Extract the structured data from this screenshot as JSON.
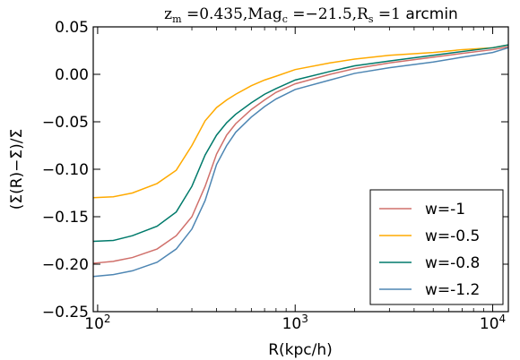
{
  "chart_data": {
    "type": "line",
    "title": "z_m =0.435,Mag_c =−21.5,R_s =1 arcmin",
    "title_parts": {
      "zm": "z",
      "zm_sub": "m",
      "zm_val": " =0.435,Mag",
      "magc_sub": "c",
      "magc_val": " =−21.5,R",
      "rs_sub": "s",
      "rs_val": " =1 ",
      "unit": "arcmin"
    },
    "xlabel": "R(kpc/h)",
    "ylabel": "(Σ(R)−Σ̄)/Σ̄",
    "x_scale": "log",
    "xlim": [
      95,
      12000
    ],
    "ylim": [
      -0.25,
      0.05
    ],
    "x_ticks": [
      {
        "value": 100,
        "base": "10",
        "exp": "2"
      },
      {
        "value": 1000,
        "base": "10",
        "exp": "3"
      },
      {
        "value": 10000,
        "base": "10",
        "exp": "4"
      }
    ],
    "y_ticks": [
      {
        "value": 0.05,
        "label": "0.05"
      },
      {
        "value": 0.0,
        "label": "0.00"
      },
      {
        "value": -0.05,
        "label": "−0.05"
      },
      {
        "value": -0.1,
        "label": "−0.10"
      },
      {
        "value": -0.15,
        "label": "−0.15"
      },
      {
        "value": -0.2,
        "label": "−0.20"
      },
      {
        "value": -0.25,
        "label": "−0.25"
      }
    ],
    "grid": false,
    "legend_position": "lower-right",
    "x": [
      95,
      120,
      150,
      200,
      250,
      300,
      350,
      400,
      450,
      500,
      600,
      700,
      800,
      1000,
      1500,
      2000,
      3000,
      5000,
      7000,
      10000,
      12000
    ],
    "series": [
      {
        "name": "w=-1",
        "color": "#d0706b",
        "values": [
          -0.199,
          -0.197,
          -0.193,
          -0.184,
          -0.17,
          -0.15,
          -0.118,
          -0.084,
          -0.064,
          -0.052,
          -0.037,
          -0.027,
          -0.019,
          -0.01,
          0.0,
          0.006,
          0.012,
          0.018,
          0.022,
          0.026,
          0.029
        ]
      },
      {
        "name": "w=-0.5",
        "color": "#ffaa00",
        "values": [
          -0.13,
          -0.129,
          -0.125,
          -0.115,
          -0.101,
          -0.075,
          -0.049,
          -0.035,
          -0.027,
          -0.021,
          -0.012,
          -0.006,
          -0.002,
          0.005,
          0.012,
          0.016,
          0.02,
          0.023,
          0.026,
          0.028,
          0.031
        ]
      },
      {
        "name": "w=-0.8",
        "color": "#007a6b",
        "values": [
          -0.176,
          -0.175,
          -0.17,
          -0.16,
          -0.145,
          -0.118,
          -0.085,
          -0.064,
          -0.051,
          -0.042,
          -0.03,
          -0.021,
          -0.015,
          -0.006,
          0.003,
          0.009,
          0.014,
          0.02,
          0.024,
          0.028,
          0.031
        ]
      },
      {
        "name": "w=-1.2",
        "color": "#4e86b3",
        "values": [
          -0.213,
          -0.211,
          -0.207,
          -0.198,
          -0.184,
          -0.163,
          -0.133,
          -0.095,
          -0.075,
          -0.061,
          -0.045,
          -0.034,
          -0.026,
          -0.016,
          -0.006,
          0.001,
          0.007,
          0.013,
          0.018,
          0.023,
          0.028
        ]
      }
    ]
  }
}
